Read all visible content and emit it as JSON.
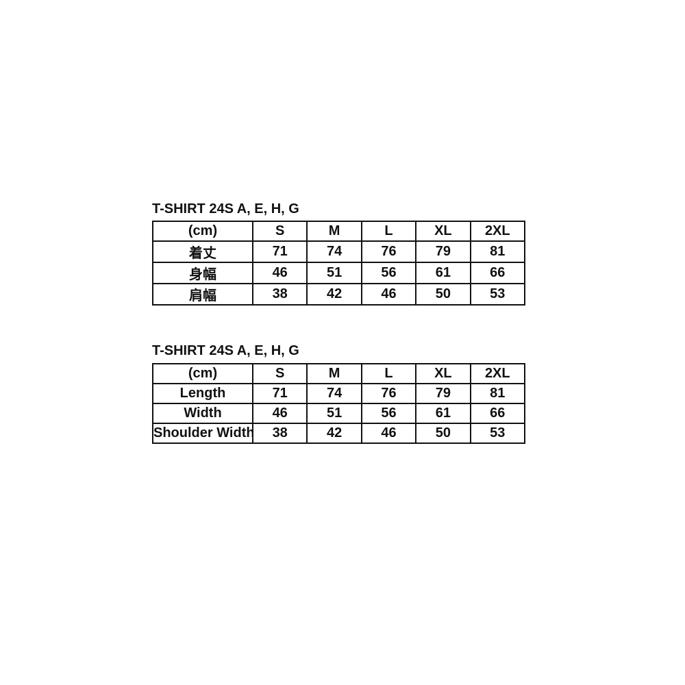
{
  "colors": {
    "background": "#ffffff",
    "text": "#111111",
    "border": "#111111"
  },
  "tables": [
    {
      "title": "T-SHIRT 24S A, E, H, G",
      "columns": [
        "(cm)",
        "S",
        "M",
        "L",
        "XL",
        "2XL"
      ],
      "rows": [
        {
          "label": "着丈",
          "values": [
            "71",
            "74",
            "76",
            "79",
            "81"
          ]
        },
        {
          "label": "身幅",
          "values": [
            "46",
            "51",
            "56",
            "61",
            "66"
          ]
        },
        {
          "label": "肩幅",
          "values": [
            "38",
            "42",
            "46",
            "50",
            "53"
          ]
        }
      ]
    },
    {
      "title": "T-SHIRT 24S A, E, H, G",
      "columns": [
        "(cm)",
        "S",
        "M",
        "L",
        "XL",
        "2XL"
      ],
      "rows": [
        {
          "label": "Length",
          "values": [
            "71",
            "74",
            "76",
            "79",
            "81"
          ]
        },
        {
          "label": "Width",
          "values": [
            "46",
            "51",
            "56",
            "61",
            "66"
          ]
        },
        {
          "label": "Shoulder Width",
          "values": [
            "38",
            "42",
            "46",
            "50",
            "53"
          ]
        }
      ]
    }
  ]
}
